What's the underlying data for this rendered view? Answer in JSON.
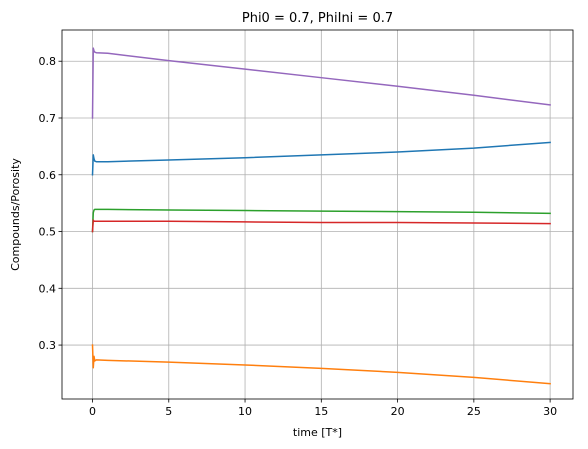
{
  "chart_data": {
    "type": "line",
    "title": "Phi0 = 0.7, PhiIni = 0.7",
    "xlabel": "time [T*]",
    "ylabel": "Compounds/Porosity",
    "xlim": [
      -2,
      31.5
    ],
    "ylim": [
      0.205,
      0.855
    ],
    "xticks": [
      0,
      5,
      10,
      15,
      20,
      25,
      30
    ],
    "yticks": [
      0.3,
      0.4,
      0.5,
      0.6,
      0.7,
      0.8
    ],
    "grid": true,
    "colors": [
      "#1f77b4",
      "#ff7f0e",
      "#2ca02c",
      "#d62728",
      "#9467bd"
    ],
    "series": [
      {
        "color": "#1f77b4",
        "x": [
          0,
          0.05,
          0.1,
          0.15,
          0.25,
          1,
          5,
          10,
          15,
          20,
          25,
          30
        ],
        "y": [
          0.6,
          0.635,
          0.628,
          0.624,
          0.623,
          0.623,
          0.626,
          0.63,
          0.635,
          0.64,
          0.647,
          0.657
        ]
      },
      {
        "color": "#ff7f0e",
        "x": [
          0,
          0.05,
          0.1,
          0.15,
          0.25,
          1,
          5,
          10,
          15,
          20,
          25,
          30
        ],
        "y": [
          0.3,
          0.26,
          0.28,
          0.272,
          0.274,
          0.273,
          0.27,
          0.265,
          0.259,
          0.252,
          0.243,
          0.232
        ]
      },
      {
        "color": "#2ca02c",
        "x": [
          0,
          0.05,
          0.1,
          0.15,
          0.25,
          1,
          5,
          10,
          15,
          20,
          25,
          30
        ],
        "y": [
          0.5,
          0.533,
          0.538,
          0.539,
          0.539,
          0.539,
          0.538,
          0.537,
          0.536,
          0.535,
          0.534,
          0.532
        ]
      },
      {
        "color": "#d62728",
        "x": [
          0,
          0.05,
          0.1,
          0.15,
          0.25,
          1,
          5,
          10,
          15,
          20,
          25,
          30
        ],
        "y": [
          0.5,
          0.52,
          0.518,
          0.518,
          0.518,
          0.518,
          0.518,
          0.517,
          0.516,
          0.516,
          0.515,
          0.514
        ]
      },
      {
        "color": "#9467bd",
        "x": [
          0,
          0.05,
          0.1,
          0.15,
          0.25,
          1,
          5,
          10,
          15,
          20,
          25,
          30
        ],
        "y": [
          0.7,
          0.823,
          0.818,
          0.816,
          0.815,
          0.814,
          0.801,
          0.786,
          0.771,
          0.756,
          0.74,
          0.723
        ]
      }
    ]
  }
}
